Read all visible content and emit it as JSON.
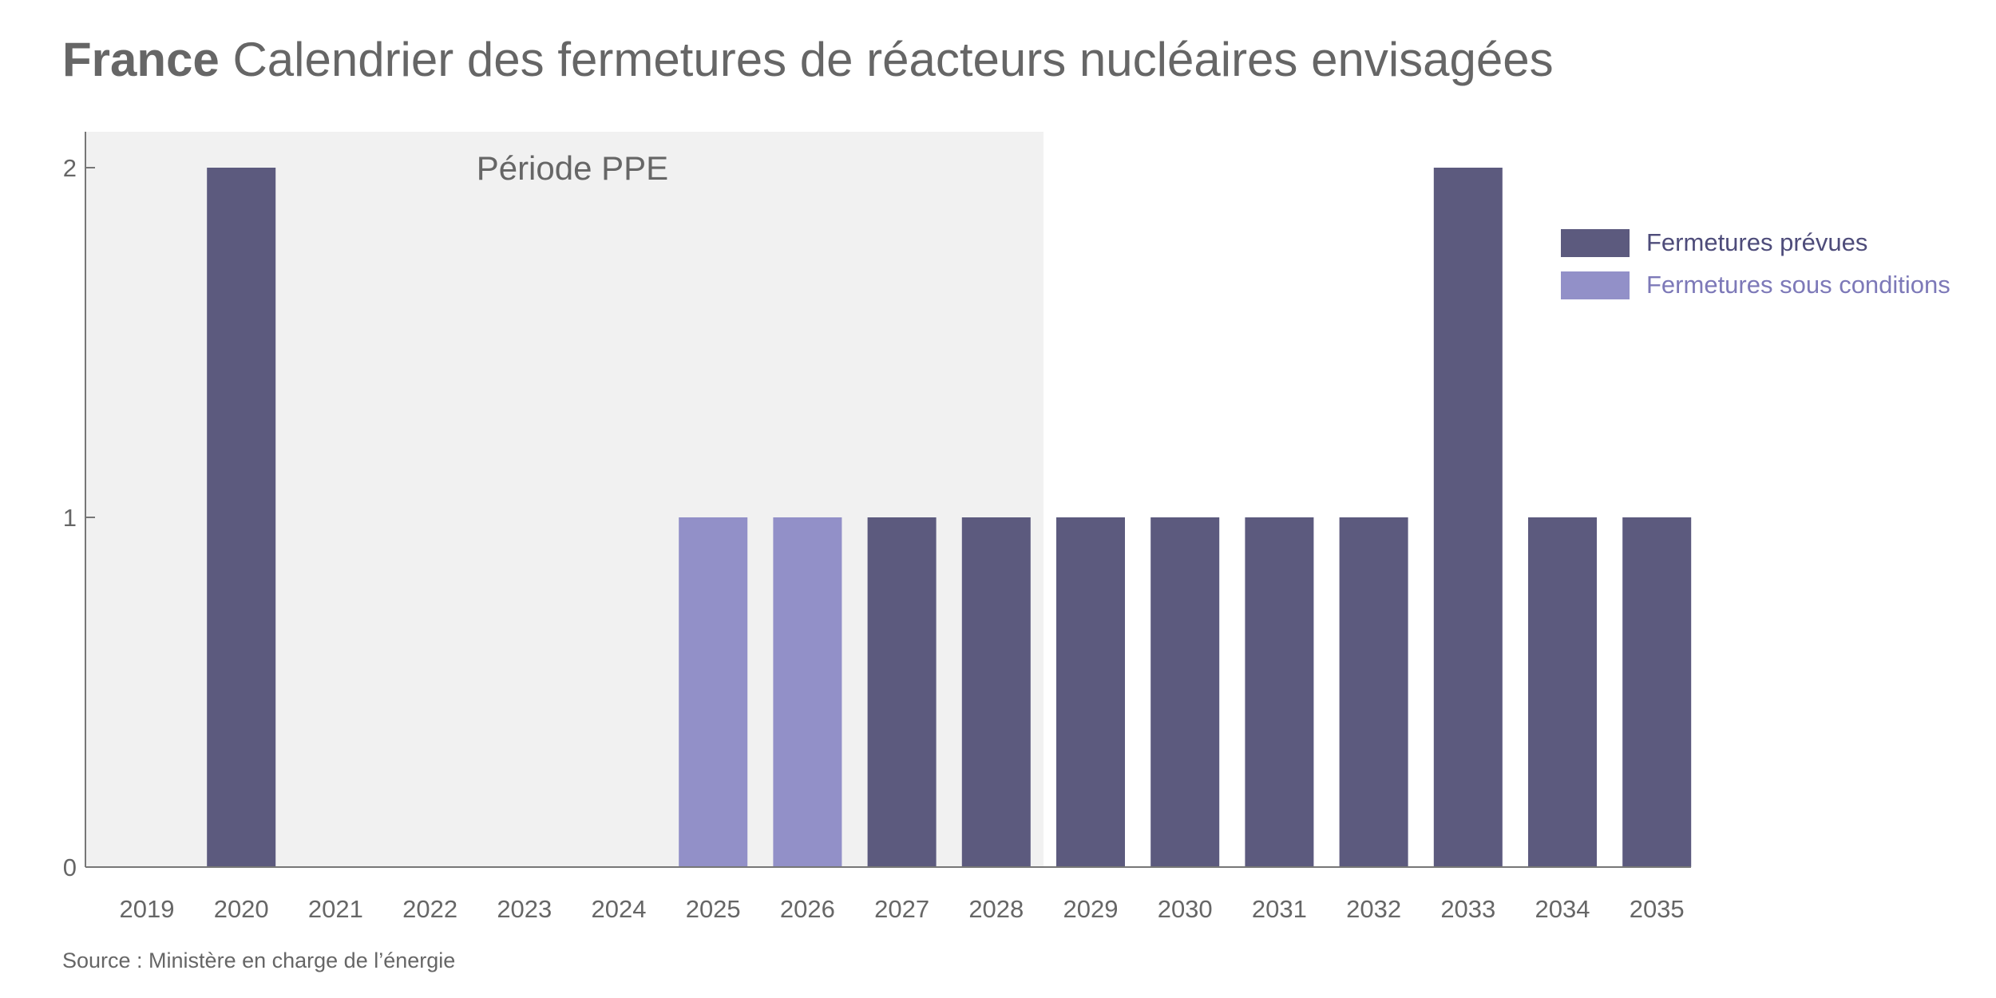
{
  "header": {
    "title_bold": "France",
    "title_rest": "Calendrier des fermetures de réacteurs nucléaires envisagées"
  },
  "source": "Source : Ministère en charge de l’énergie",
  "colors": {
    "prevues": "#5c5a7e",
    "conditions": "#9290c8",
    "prevues_text": "#4e4c7a",
    "conditions_text": "#7d79b8",
    "band": "#f1f1f1"
  },
  "chart_data": {
    "type": "bar",
    "title": "France Calendrier des fermetures de réacteurs nucléaires envisagées",
    "xlabel": "",
    "ylabel": "",
    "categories": [
      "2019",
      "2020",
      "2021",
      "2022",
      "2023",
      "2024",
      "2025",
      "2026",
      "2027",
      "2028",
      "2029",
      "2030",
      "2031",
      "2032",
      "2033",
      "2034",
      "2035"
    ],
    "series": [
      {
        "name": "Fermetures prévues",
        "values": [
          0,
          2,
          0,
          0,
          0,
          0,
          0,
          0,
          1,
          1,
          1,
          1,
          1,
          1,
          2,
          1,
          1
        ]
      },
      {
        "name": "Fermetures sous conditions",
        "values": [
          0,
          0,
          0,
          0,
          0,
          0,
          1,
          1,
          0,
          0,
          0,
          0,
          0,
          0,
          0,
          0,
          0
        ]
      }
    ],
    "ylim": [
      0,
      2.1
    ],
    "yticks": [
      0,
      1,
      2
    ],
    "annotation": {
      "label": "Période PPE",
      "from": "2019",
      "to": "2028"
    },
    "legend": "top-right",
    "grid": false
  }
}
